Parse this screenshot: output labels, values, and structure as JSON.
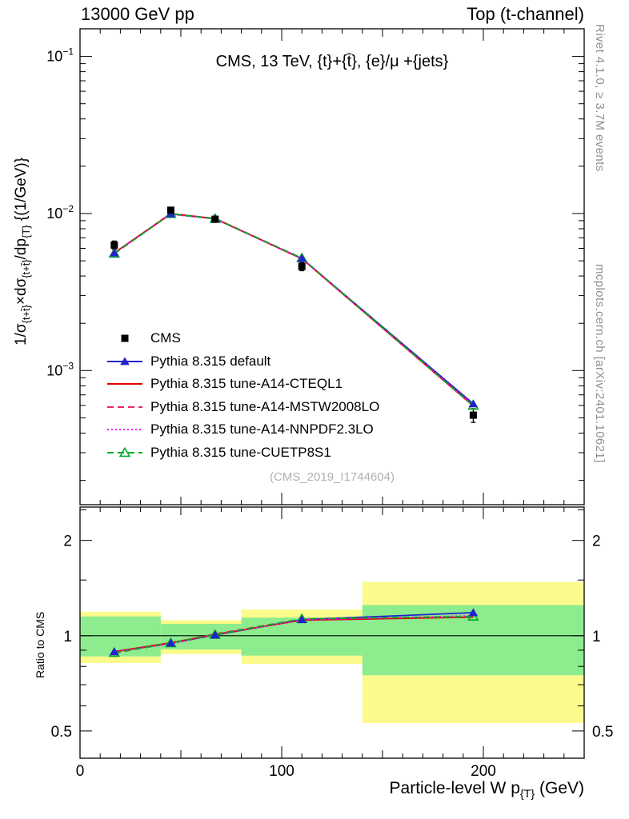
{
  "header": {
    "left": "13000 GeV pp",
    "right": "Top (t-channel)"
  },
  "watermarks": {
    "rivet": "Rivet 4.1.0, ≥ 3.7M events",
    "mcplots": "mcplots.cern.ch [arXiv:2401.10621]"
  },
  "chart_data": {
    "type": "line",
    "title": "CMS, 13 TeV, {t}+{t̄}, {e}/μ +{jets}",
    "footnote": "(CMS_2019_I1744604)",
    "xlabel": "Particle-level W p_{{T}} (GeV)",
    "ylabel": "1/σ_{{t+t̄}}×dσ_{{t+t̄}}/dp_{{T}}  {(1/GeV)}",
    "ratio_ylabel": "Ratio to CMS",
    "x_range": [
      0,
      250
    ],
    "x_major_ticks": [
      0,
      100,
      200
    ],
    "y_main_axis": {
      "scale": "log",
      "range": [
        0.00014,
        0.15
      ],
      "labeled_ticks": [
        0.001,
        0.01,
        0.1
      ]
    },
    "y_ratio_axis": {
      "scale": "log",
      "range": [
        0.41,
        2.55
      ],
      "labeled_ticks": [
        0.5,
        1,
        2
      ],
      "minor_ticks": [
        0.6,
        0.7,
        0.8,
        0.9,
        1.5,
        2.5
      ]
    },
    "x": [
      17,
      45,
      67,
      110,
      195
    ],
    "ratio_reference": 1,
    "series": [
      {
        "name": "CMS",
        "color": "#000000",
        "marker": "square",
        "line": false,
        "dash": "solid",
        "values": [
          0.0063,
          0.0105,
          0.0092,
          0.0046,
          0.00052
        ],
        "yerr_frac": [
          0.06,
          0.04,
          0.04,
          0.06,
          0.1
        ],
        "ratio": null
      },
      {
        "name": "Pythia 8.315 default",
        "color": "#2222cc",
        "marker": "triangle",
        "line": true,
        "dash": "solid",
        "values": [
          0.00561,
          0.00995,
          0.00925,
          0.00517,
          0.000615
        ],
        "ratio": [
          0.89,
          0.948,
          1.005,
          1.124,
          1.183
        ]
      },
      {
        "name": "Pythia 8.315 tune-A14-CTEQL1",
        "color": "#e00000",
        "marker": null,
        "line": true,
        "dash": "solid",
        "values": [
          0.00561,
          0.00998,
          0.00928,
          0.00515,
          0.000595
        ],
        "ratio": [
          0.89,
          0.95,
          1.009,
          1.12,
          1.145
        ]
      },
      {
        "name": "Pythia 8.315 tune-A14-MSTW2008LO",
        "color": "#ee2266",
        "marker": null,
        "line": true,
        "dash": "dash",
        "values": [
          0.00555,
          0.00995,
          0.00932,
          0.00519,
          0.000597
        ],
        "ratio": [
          0.881,
          0.948,
          1.013,
          1.128,
          1.148
        ]
      },
      {
        "name": "Pythia 8.315 tune-A14-NNPDF2.3LO",
        "color": "#ff00ff",
        "marker": null,
        "line": true,
        "dash": "dot",
        "values": [
          0.00561,
          0.00988,
          0.00925,
          0.00516,
          0.000601
        ],
        "ratio": [
          0.89,
          0.941,
          1.005,
          1.122,
          1.156
        ]
      },
      {
        "name": "Pythia 8.315 tune-CUETP8S1",
        "color": "#00aa22",
        "marker": "triangle-open",
        "line": true,
        "dash": "dash",
        "values": [
          0.00556,
          0.00995,
          0.00927,
          0.0052,
          0.000598
        ],
        "ratio": [
          0.883,
          0.948,
          1.007,
          1.13,
          1.15
        ]
      }
    ],
    "ratio_bands": [
      {
        "x0": 0,
        "x1": 40,
        "outer": [
          0.82,
          1.19
        ],
        "inner": [
          0.86,
          1.15
        ]
      },
      {
        "x0": 40,
        "x1": 80,
        "outer": [
          0.875,
          1.12
        ],
        "inner": [
          0.905,
          1.09
        ]
      },
      {
        "x0": 80,
        "x1": 140,
        "outer": [
          0.815,
          1.21
        ],
        "inner": [
          0.865,
          1.14
        ]
      },
      {
        "x0": 140,
        "x1": 250,
        "outer": [
          0.53,
          1.48
        ],
        "inner": [
          0.75,
          1.25
        ]
      }
    ],
    "colors": {
      "band_outer": "#fbfb8b",
      "band_inner": "#8dec8d",
      "frame": "#000000",
      "watermark": "#8f8f8f",
      "footnote": "#b0b0b0"
    }
  }
}
